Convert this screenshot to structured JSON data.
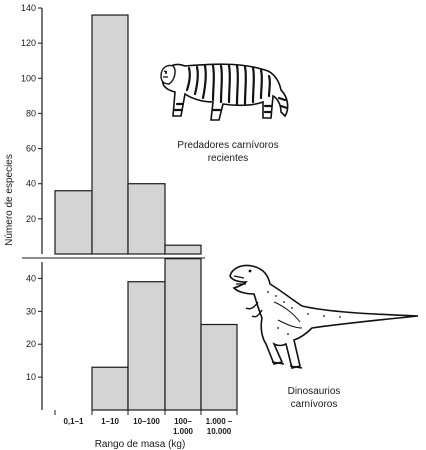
{
  "chart_data": [
    {
      "type": "bar",
      "panel": "top",
      "categories": [
        "0,1–1",
        "1–10",
        "10–100",
        "100–1.000",
        "1.000–10.000"
      ],
      "values": [
        36,
        136,
        40,
        5,
        0
      ],
      "ylim": [
        0,
        140
      ],
      "yticks": [
        20,
        40,
        60,
        80,
        100,
        120,
        140
      ],
      "annotation": "Predadores carnívoros recientes",
      "fill": "#d4d4d4"
    },
    {
      "type": "bar",
      "panel": "bottom",
      "categories": [
        "0,1–1",
        "1–10",
        "10–100",
        "100–1.000",
        "1.000–10.000"
      ],
      "values": [
        0,
        13,
        39,
        46,
        26
      ],
      "ylim": [
        0,
        45
      ],
      "yticks": [
        10,
        20,
        30,
        40
      ],
      "annotation": "Dinosaurios carnívoros",
      "fill": "#d4d4d4"
    }
  ],
  "axes": {
    "ylabel": "Número de especies",
    "xlabel": "Rango de masa (kg)",
    "xtick_labels": [
      [
        "0,1–1"
      ],
      [
        "1–10"
      ],
      [
        "10–100"
      ],
      [
        "100–",
        "1.000"
      ],
      [
        "1.000 –",
        "10.000"
      ]
    ]
  },
  "labels": {
    "top_annotation": [
      "Predadores carnívoros",
      "recientes"
    ],
    "bottom_annotation": [
      "Dinosaurios",
      "carnívoros"
    ]
  },
  "icons": [
    "tiger-illustration",
    "tyrannosaurus-illustration"
  ]
}
